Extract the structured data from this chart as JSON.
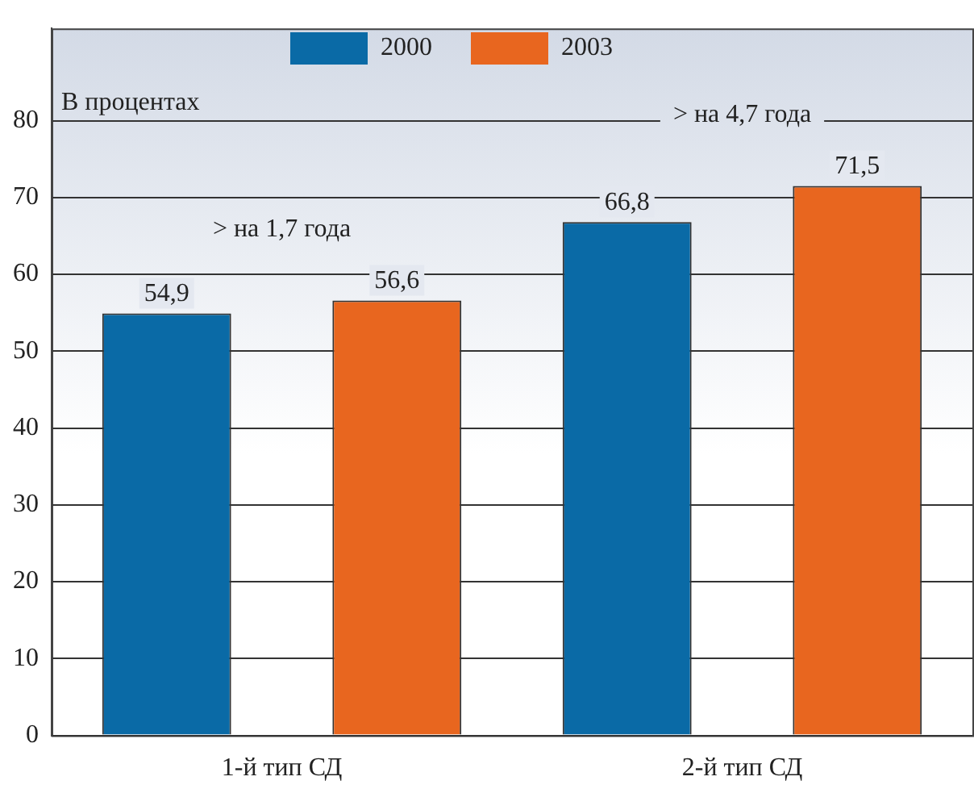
{
  "chart_data": {
    "type": "bar",
    "ylabel": "В процентах",
    "categories": [
      "1-й тип СД",
      "2-й тип СД"
    ],
    "series": [
      {
        "name": "2000",
        "color": "#0a6aa6",
        "values": [
          54.9,
          66.8
        ],
        "value_labels": [
          "54,9",
          "66,8"
        ]
      },
      {
        "name": "2003",
        "color": "#e8661f",
        "values": [
          56.6,
          71.5
        ],
        "value_labels": [
          "56,6",
          "71,5"
        ]
      }
    ],
    "ylim": [
      0,
      92
    ],
    "yticks": [
      0,
      10,
      20,
      30,
      40,
      50,
      60,
      70,
      80
    ],
    "grid": "y",
    "legend": "top",
    "annotations": [
      "> на 1,7 года",
      "> на 4,7 года"
    ]
  }
}
